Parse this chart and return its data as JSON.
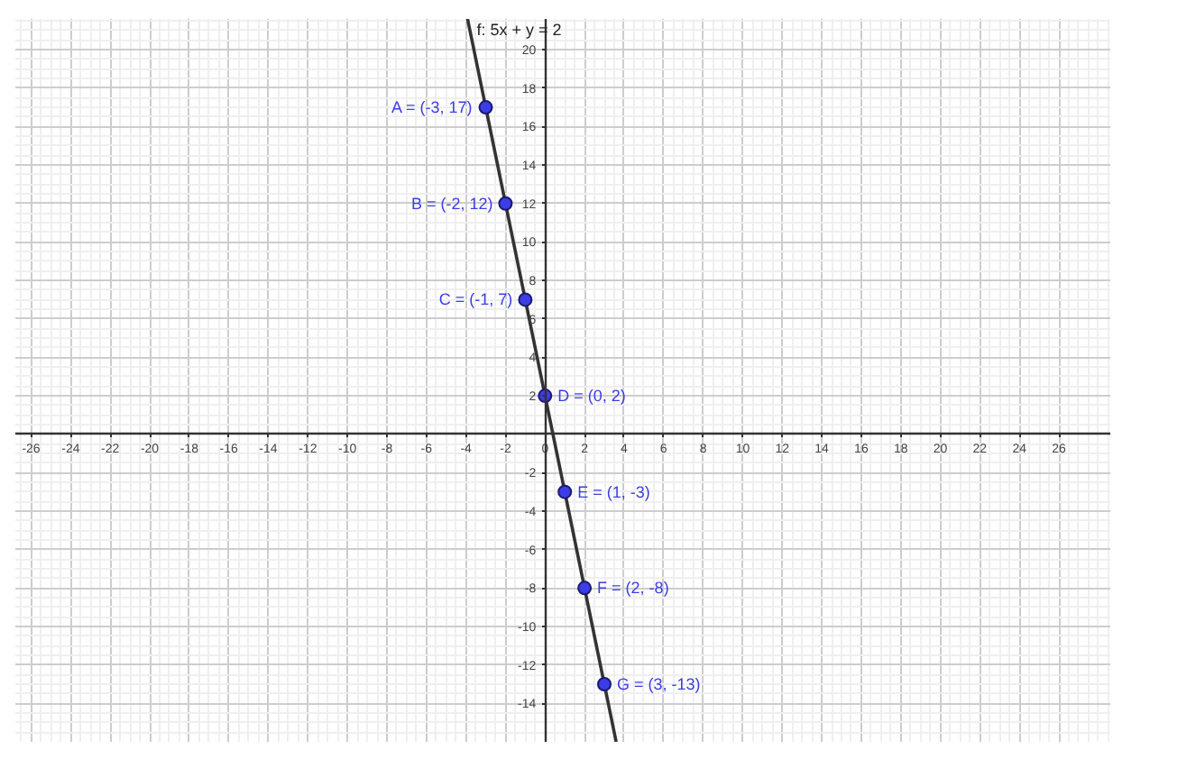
{
  "chart_data": {
    "type": "line",
    "xlim": [
      -26.8,
      28.6
    ],
    "ylim": [
      -16,
      21.6
    ],
    "xticks": [
      -26,
      -24,
      -22,
      -20,
      -18,
      -16,
      -14,
      -12,
      -10,
      -8,
      -6,
      -4,
      -2,
      0,
      2,
      4,
      6,
      8,
      10,
      12,
      14,
      16,
      18,
      20,
      22,
      24,
      26
    ],
    "yticks": [
      -14,
      -12,
      -10,
      -8,
      -6,
      -4,
      -2,
      2,
      4,
      6,
      8,
      10,
      12,
      14,
      16,
      18,
      20
    ],
    "grid": true,
    "series": [
      {
        "name": "f: 5x + y = 2",
        "color": "#333333",
        "x": [
          -3.92,
          3.6
        ],
        "values": [
          21.6,
          -16
        ]
      },
      {
        "type": "scatter",
        "color": "#3d3de6",
        "marker": "circle",
        "x": [
          -3,
          -2,
          -1,
          0,
          1,
          2,
          3
        ],
        "values": [
          17,
          12,
          7,
          2,
          -3,
          -8,
          -13
        ],
        "value_labels": [
          "A = (-3, 17)",
          "B = (-2, 12)",
          "C = (-1, 7)",
          "D = (0, 2)",
          "E = (1, -3)",
          "F = (2, -8)",
          "G = (3, -13)"
        ]
      }
    ]
  }
}
